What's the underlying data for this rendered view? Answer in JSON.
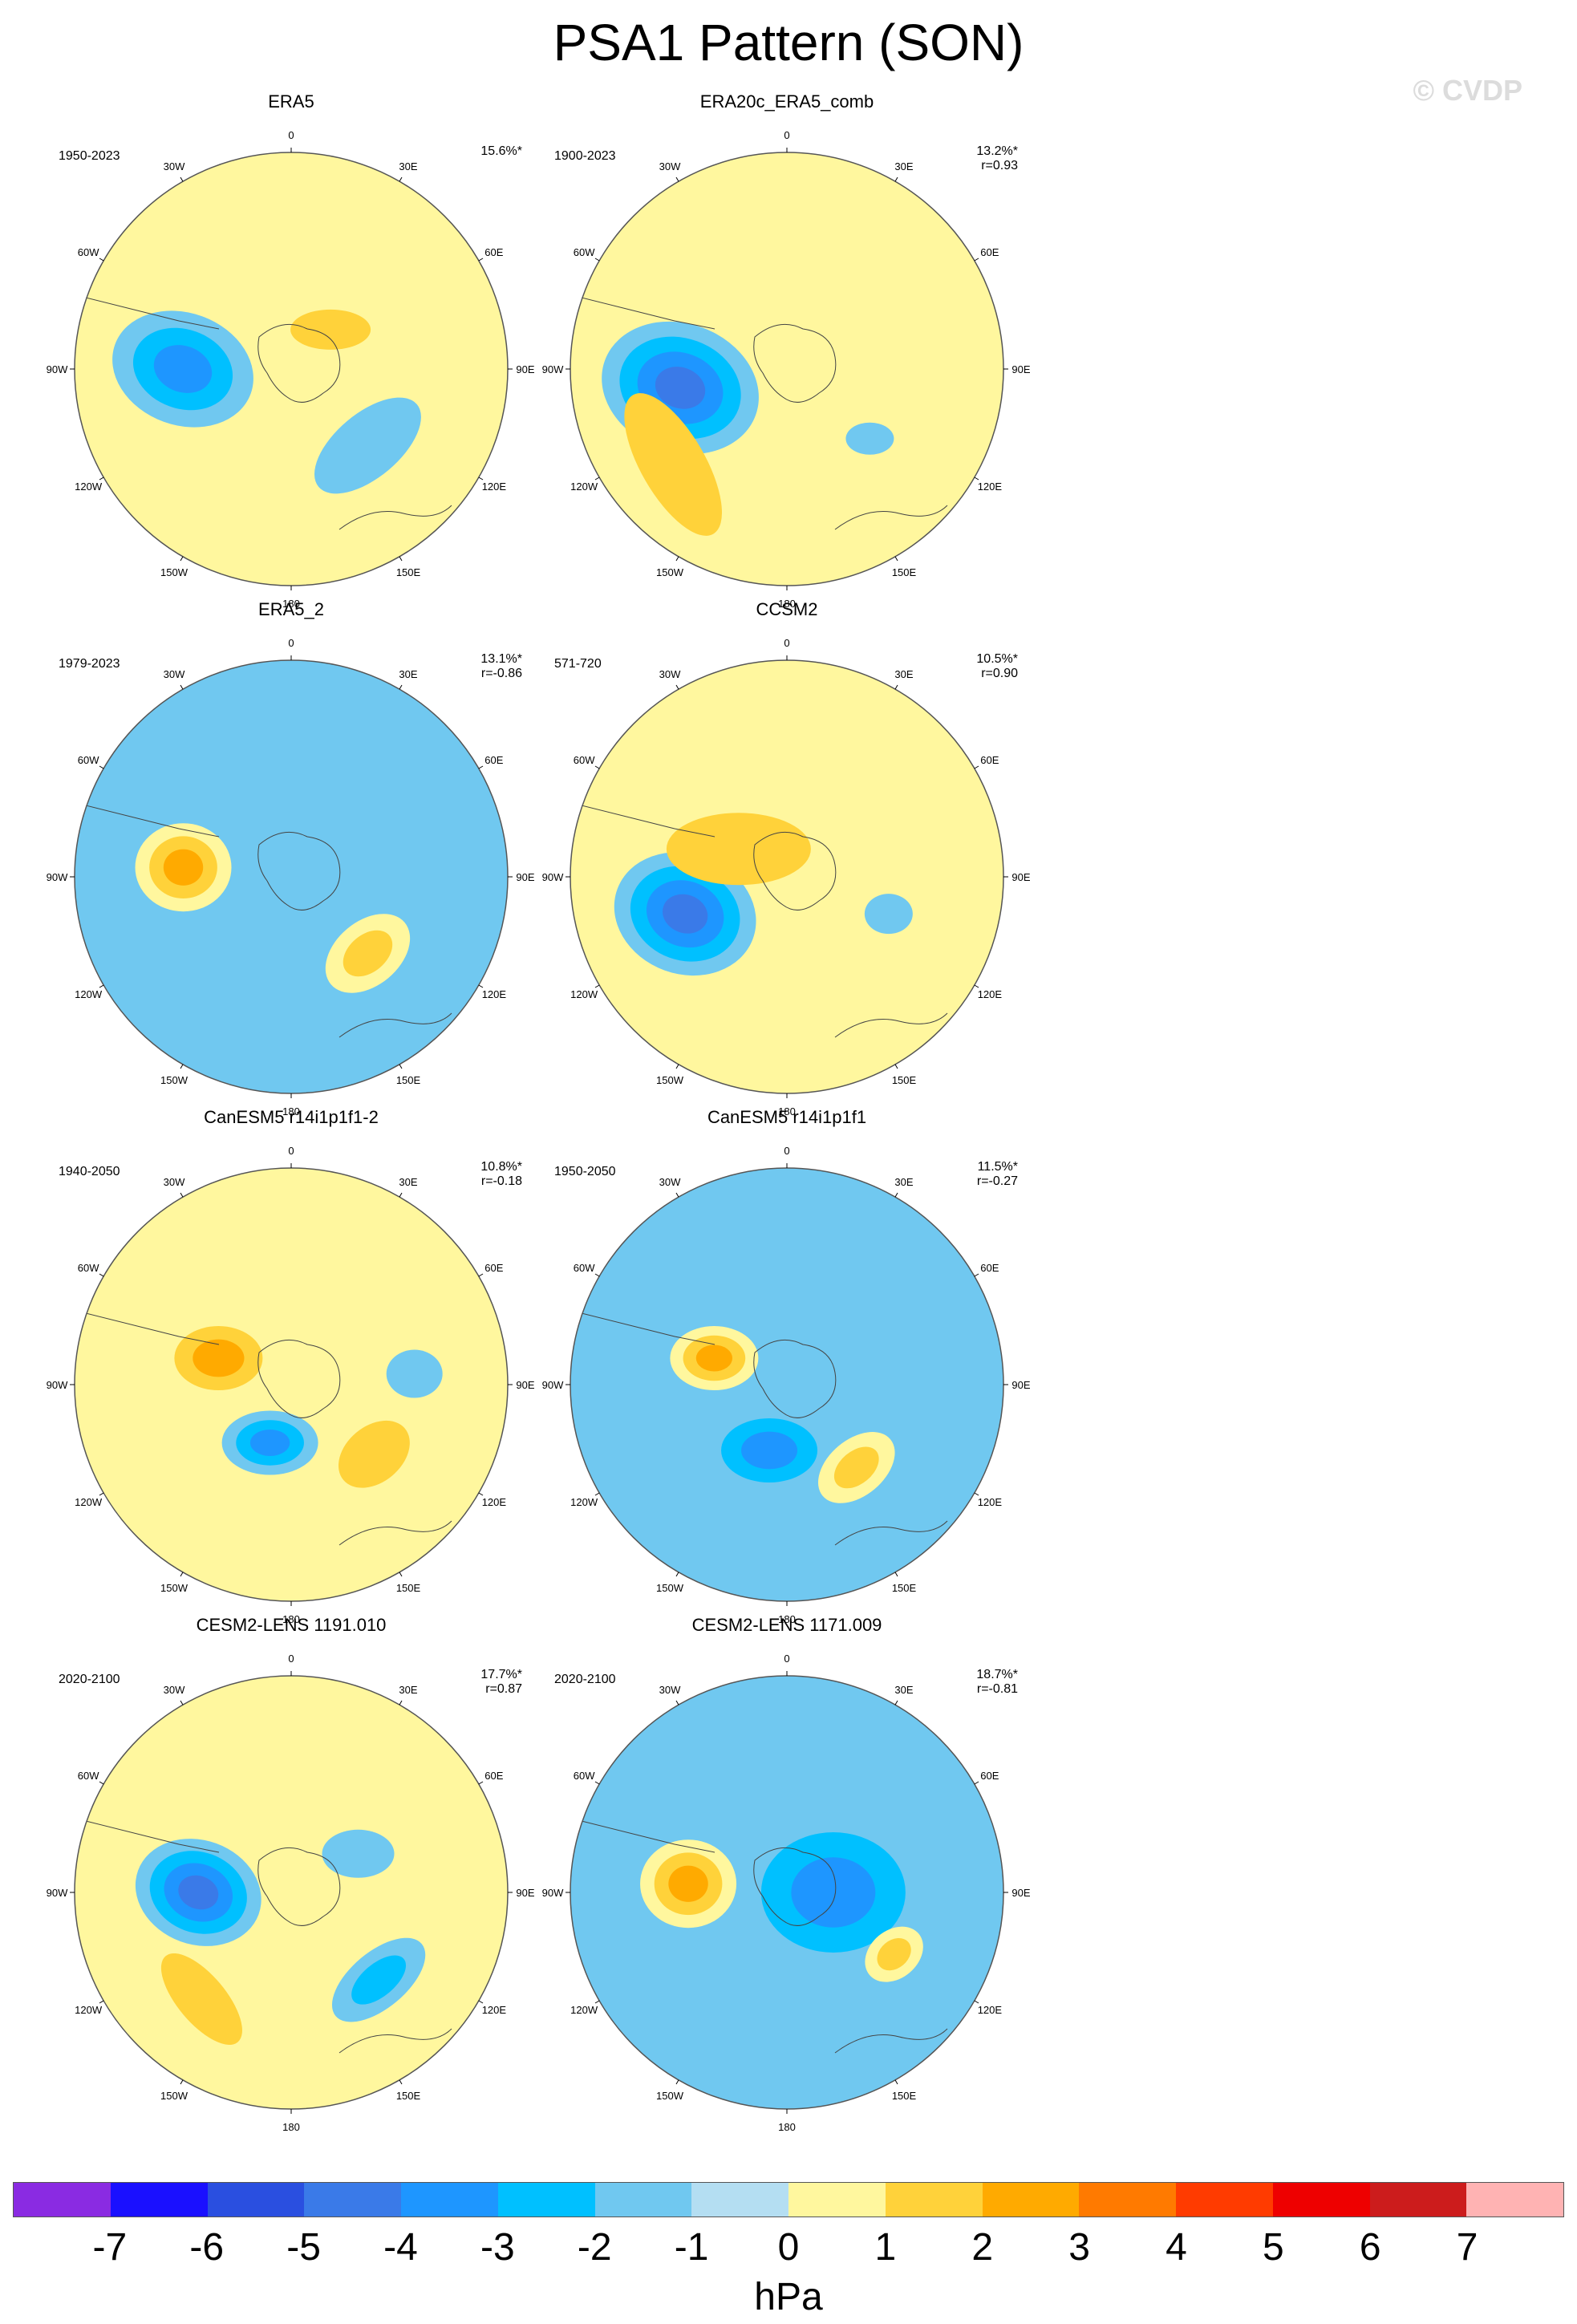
{
  "title": "PSA1 Pattern (SON)",
  "watermark": "© CVDP",
  "lon_labels": [
    "0",
    "30E",
    "60E",
    "90E",
    "120E",
    "150E",
    "180",
    "150W",
    "120W",
    "90W",
    "60W",
    "30W"
  ],
  "colors": {
    "background": "#ffffff",
    "map_outline": "#555555",
    "coastline": "#444444"
  },
  "panels": [
    {
      "name": "ERA5",
      "period": "1950-2023",
      "stat1": "15.6%*",
      "stat2": "",
      "icon": "polar-stereographic-map",
      "background_level": 1,
      "blobs": [
        {
          "lon": 270,
          "lat": -55,
          "a": 90,
          "b": 70,
          "rot": 20,
          "level": -3
        },
        {
          "lon": 135,
          "lat": -55,
          "a": 80,
          "b": 40,
          "rot": -40,
          "level": -1
        },
        {
          "lon": 45,
          "lat": -72,
          "a": 50,
          "b": 25,
          "rot": 0,
          "level": 2
        }
      ]
    },
    {
      "name": "ERA20c_ERA5_comb",
      "period": "1900-2023",
      "stat1": "13.2%*",
      "stat2": "r=0.93",
      "icon": "polar-stereographic-map",
      "background_level": 1,
      "blobs": [
        {
          "lon": 260,
          "lat": -55,
          "a": 100,
          "b": 80,
          "rot": 20,
          "level": -4
        },
        {
          "lon": 130,
          "lat": -55,
          "a": 30,
          "b": 20,
          "rot": 0,
          "level": -1
        },
        {
          "lon": 230,
          "lat": -42,
          "a": 100,
          "b": 40,
          "rot": 60,
          "level": 2
        }
      ]
    },
    {
      "name": "ERA5_2",
      "period": "1979-2023",
      "stat1": "13.1%*",
      "stat2": "r=-0.86",
      "icon": "polar-stereographic-map",
      "background_level": -1,
      "blobs": [
        {
          "lon": 275,
          "lat": -55,
          "a": 60,
          "b": 55,
          "rot": 0,
          "level": 3
        },
        {
          "lon": 135,
          "lat": -55,
          "a": 60,
          "b": 40,
          "rot": -40,
          "level": 2
        },
        {
          "lon": 330,
          "lat": -65,
          "a": 50,
          "b": 30,
          "rot": 0,
          "level": -1
        }
      ]
    },
    {
      "name": "CCSM2",
      "period": "571-720",
      "stat1": "10.5%*",
      "stat2": "r=0.90",
      "icon": "polar-stereographic-map",
      "background_level": 1,
      "blobs": [
        {
          "lon": 250,
          "lat": -55,
          "a": 90,
          "b": 75,
          "rot": 20,
          "level": -4
        },
        {
          "lon": 300,
          "lat": -72,
          "a": 90,
          "b": 45,
          "rot": 0,
          "level": 2
        },
        {
          "lon": 110,
          "lat": -55,
          "a": 30,
          "b": 25,
          "rot": 0,
          "level": -1
        }
      ]
    },
    {
      "name": "CanESM5 r14i1p1f1-2",
      "period": "1940-2050",
      "stat1": "10.8%*",
      "stat2": "r=-0.18",
      "icon": "polar-stereographic-map",
      "background_level": 1,
      "blobs": [
        {
          "lon": 200,
          "lat": -70,
          "a": 60,
          "b": 40,
          "rot": 0,
          "level": -3
        },
        {
          "lon": 290,
          "lat": -65,
          "a": 55,
          "b": 40,
          "rot": 0,
          "level": 3
        },
        {
          "lon": 130,
          "lat": -55,
          "a": 50,
          "b": 35,
          "rot": -40,
          "level": 2
        },
        {
          "lon": 85,
          "lat": -50,
          "a": 35,
          "b": 30,
          "rot": 0,
          "level": -1
        }
      ]
    },
    {
      "name": "CanESM5 r14i1p1f1",
      "period": "1950-2050",
      "stat1": "11.5%*",
      "stat2": "r=-0.27",
      "icon": "polar-stereographic-map",
      "background_level": -1,
      "blobs": [
        {
          "lon": 195,
          "lat": -68,
          "a": 60,
          "b": 40,
          "rot": 0,
          "level": -3
        },
        {
          "lon": 290,
          "lat": -65,
          "a": 55,
          "b": 40,
          "rot": 0,
          "level": 3
        },
        {
          "lon": 140,
          "lat": -55,
          "a": 55,
          "b": 35,
          "rot": -40,
          "level": 2
        }
      ]
    },
    {
      "name": "CESM2-LENS 1191.010",
      "period": "2020-2100",
      "stat1": "17.7%*",
      "stat2": "r=0.87",
      "icon": "polar-stereographic-map",
      "background_level": 1,
      "blobs": [
        {
          "lon": 270,
          "lat": -60,
          "a": 80,
          "b": 65,
          "rot": 20,
          "level": -4
        },
        {
          "lon": 60,
          "lat": -65,
          "a": 45,
          "b": 30,
          "rot": 0,
          "level": -1
        },
        {
          "lon": 135,
          "lat": -50,
          "a": 70,
          "b": 35,
          "rot": -40,
          "level": -2
        },
        {
          "lon": 220,
          "lat": -45,
          "a": 70,
          "b": 30,
          "rot": 50,
          "level": 2
        }
      ]
    },
    {
      "name": "CESM2-LENS 1171.009",
      "period": "2020-2100",
      "stat1": "18.7%*",
      "stat2": "r=-0.81",
      "icon": "polar-stereographic-map",
      "background_level": -1,
      "blobs": [
        {
          "lon": 275,
          "lat": -58,
          "a": 60,
          "b": 55,
          "rot": 0,
          "level": 3
        },
        {
          "lon": 90,
          "lat": -75,
          "a": 90,
          "b": 75,
          "rot": 0,
          "level": -3
        },
        {
          "lon": 120,
          "lat": -50,
          "a": 40,
          "b": 30,
          "rot": -40,
          "level": 2
        }
      ]
    }
  ],
  "colorbar": {
    "colors": [
      "#8a2be2",
      "#1a10ff",
      "#2a4fe0",
      "#3a7ae8",
      "#1e96ff",
      "#00c0ff",
      "#70c8f0",
      "#b4def2",
      "#fff79e",
      "#ffd23a",
      "#ffaa00",
      "#ff7a00",
      "#ff3b00",
      "#ee0000",
      "#cc1c1c",
      "#ffb3b3"
    ],
    "labels": [
      "-7",
      "-6",
      "-5",
      "-4",
      "-3",
      "-2",
      "-1",
      "0",
      "1",
      "2",
      "3",
      "4",
      "5",
      "6",
      "7"
    ],
    "units": "hPa"
  }
}
